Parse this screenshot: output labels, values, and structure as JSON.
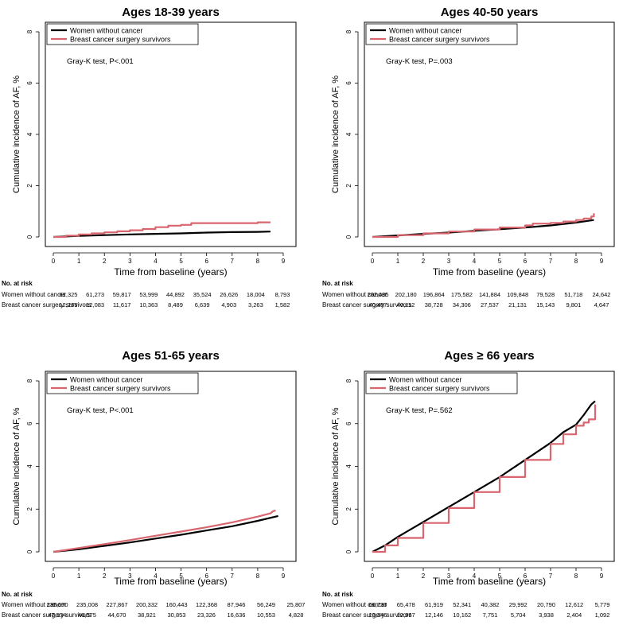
{
  "colors": {
    "women": "#000000",
    "survivors": "#d9656e"
  },
  "risk_header": "No. at risk",
  "risk_row_labels": [
    "Women without cancer",
    "Breast cancer surgery survivors"
  ],
  "chart_data": [
    {
      "type": "line",
      "title": "Ages 18-39 years",
      "xlabel": "Time from baseline (years)",
      "ylabel": "Cumulative incidence of AF, %",
      "xlim": [
        0,
        9
      ],
      "ylim": [
        0,
        8
      ],
      "xticks": [
        "0",
        "1",
        "2",
        "3",
        "4",
        "5",
        "6",
        "7",
        "8",
        "9"
      ],
      "yticks": [
        "0",
        "2",
        "4",
        "6",
        "8"
      ],
      "legend": [
        "Women without cancer",
        "Breast cancer surgery survivors"
      ],
      "annotation": "Gray-K test, P<.001",
      "series": [
        {
          "name": "Women without cancer",
          "color": "women",
          "step": false,
          "x": [
            0,
            1,
            2,
            3,
            4,
            5,
            6,
            7,
            8,
            8.5
          ],
          "y": [
            0,
            0.04,
            0.07,
            0.1,
            0.12,
            0.14,
            0.17,
            0.19,
            0.2,
            0.21
          ]
        },
        {
          "name": "Breast cancer surgery survivors",
          "color": "survivors",
          "step": true,
          "x": [
            0,
            0.5,
            1,
            1.5,
            2,
            2.5,
            3,
            3.5,
            4,
            4.5,
            5,
            5.4,
            6,
            7,
            8,
            8.5
          ],
          "y": [
            0,
            0.05,
            0.1,
            0.14,
            0.18,
            0.22,
            0.26,
            0.31,
            0.38,
            0.44,
            0.47,
            0.54,
            0.54,
            0.54,
            0.57,
            0.57
          ]
        }
      ],
      "at_risk": {
        "women": [
          "61,325",
          "61,273",
          "59,817",
          "53,999",
          "44,892",
          "35,524",
          "26,626",
          "18,004",
          "8,793"
        ],
        "survivors": [
          "12,265",
          "12,083",
          "11,617",
          "10,363",
          "8,489",
          "6,639",
          "4,903",
          "3,263",
          "1,582"
        ]
      }
    },
    {
      "type": "line",
      "title": "Ages 40-50 years",
      "xlabel": "Time from baseline (years)",
      "ylabel": "Cumulative incidence of AF, %",
      "xlim": [
        0,
        9
      ],
      "ylim": [
        0,
        8
      ],
      "xticks": [
        "0",
        "1",
        "2",
        "3",
        "4",
        "5",
        "6",
        "7",
        "8",
        "9"
      ],
      "yticks": [
        "0",
        "2",
        "4",
        "6",
        "8"
      ],
      "legend": [
        "Women without cancer",
        "Breast cancer surgery survivors"
      ],
      "annotation": "Gray-K test, P=.003",
      "series": [
        {
          "name": "Women without cancer",
          "color": "women",
          "step": false,
          "x": [
            0,
            1,
            2,
            3,
            4,
            5,
            6,
            7,
            8,
            8.7
          ],
          "y": [
            0,
            0.06,
            0.12,
            0.17,
            0.24,
            0.3,
            0.37,
            0.45,
            0.56,
            0.66
          ]
        },
        {
          "name": "Breast cancer surgery survivors",
          "color": "survivors",
          "step": true,
          "x": [
            0,
            1,
            2,
            3,
            4,
            5,
            6,
            6.3,
            7,
            7.5,
            8,
            8.3,
            8.6,
            8.7
          ],
          "y": [
            0,
            0.07,
            0.14,
            0.21,
            0.29,
            0.37,
            0.45,
            0.52,
            0.55,
            0.6,
            0.66,
            0.72,
            0.8,
            0.92
          ]
        }
      ],
      "at_risk": {
        "women": [
          "202,435",
          "202,180",
          "196,864",
          "175,582",
          "141,884",
          "109,848",
          "79,528",
          "51,718",
          "24,642"
        ],
        "survivors": [
          "40,487",
          "40,112",
          "38,728",
          "34,306",
          "27,537",
          "21,131",
          "15,143",
          "9,801",
          "4,647"
        ]
      }
    },
    {
      "type": "line",
      "title": "Ages 51-65 years",
      "xlabel": "Time from baseline (years)",
      "ylabel": "Cumulative incidence of AF, %",
      "xlim": [
        0,
        9
      ],
      "ylim": [
        0,
        8
      ],
      "xticks": [
        "0",
        "1",
        "2",
        "3",
        "4",
        "5",
        "6",
        "7",
        "8",
        "9"
      ],
      "yticks": [
        "0",
        "2",
        "4",
        "6",
        "8"
      ],
      "legend": [
        "Women without cancer",
        "Breast cancer surgery survivors"
      ],
      "annotation": "Gray-K test, P<.001",
      "series": [
        {
          "name": "Women without cancer",
          "color": "women",
          "step": false,
          "x": [
            0,
            1,
            2,
            3,
            4,
            5,
            6,
            7,
            8,
            8.8
          ],
          "y": [
            0,
            0.12,
            0.28,
            0.44,
            0.62,
            0.8,
            1.0,
            1.2,
            1.45,
            1.68
          ]
        },
        {
          "name": "Breast cancer surgery survivors",
          "color": "survivors",
          "step": false,
          "x": [
            0,
            1,
            2,
            3,
            4,
            5,
            6,
            7,
            8,
            8.5,
            8.6,
            8.7
          ],
          "y": [
            0,
            0.18,
            0.36,
            0.55,
            0.75,
            0.95,
            1.15,
            1.38,
            1.65,
            1.8,
            1.9,
            1.94
          ]
        }
      ],
      "at_risk": {
        "women": [
          "235,670",
          "235,008",
          "227,867",
          "200,332",
          "160,443",
          "122,368",
          "87,946",
          "56,249",
          "25,807"
        ],
        "survivors": [
          "47,134",
          "46,575",
          "44,670",
          "38,921",
          "30,853",
          "23,326",
          "16,636",
          "10,553",
          "4,828"
        ]
      }
    },
    {
      "type": "line",
      "title": "Ages ≥ 66 years",
      "xlabel": "Time from baseline (years)",
      "ylabel": "Cumulative incidence of AF, %",
      "xlim": [
        0,
        9
      ],
      "ylim": [
        0,
        8
      ],
      "xticks": [
        "0",
        "1",
        "2",
        "3",
        "4",
        "5",
        "6",
        "7",
        "8",
        "9"
      ],
      "yticks": [
        "0",
        "2",
        "4",
        "6",
        "8"
      ],
      "legend": [
        "Women without cancer",
        "Breast cancer surgery survivors"
      ],
      "annotation": "Gray-K test, P=.562",
      "series": [
        {
          "name": "Women without cancer",
          "color": "women",
          "step": false,
          "x": [
            0,
            0.5,
            1,
            2,
            3,
            4,
            5,
            6,
            7,
            7.5,
            8,
            8.3,
            8.6,
            8.75
          ],
          "y": [
            0,
            0.3,
            0.7,
            1.4,
            2.1,
            2.8,
            3.5,
            4.3,
            5.1,
            5.6,
            5.95,
            6.4,
            6.9,
            7.05
          ]
        },
        {
          "name": "Breast cancer surgery survivors",
          "color": "survivors",
          "step": true,
          "x": [
            0,
            0.5,
            1,
            2,
            3,
            4,
            5,
            6,
            7,
            7.5,
            8,
            8.3,
            8.5,
            8.75
          ],
          "y": [
            0,
            0.3,
            0.65,
            1.35,
            2.05,
            2.8,
            3.5,
            4.3,
            5.05,
            5.5,
            5.9,
            6.05,
            6.2,
            6.9
          ]
        }
      ],
      "at_risk": {
        "women": [
          "66,730",
          "65,478",
          "61,919",
          "52,341",
          "40,382",
          "29,992",
          "20,790",
          "12,612",
          "5,779"
        ],
        "survivors": [
          "13,346",
          "12,967",
          "12,146",
          "10,162",
          "7,751",
          "5,704",
          "3,938",
          "2,404",
          "1,092"
        ]
      }
    }
  ]
}
